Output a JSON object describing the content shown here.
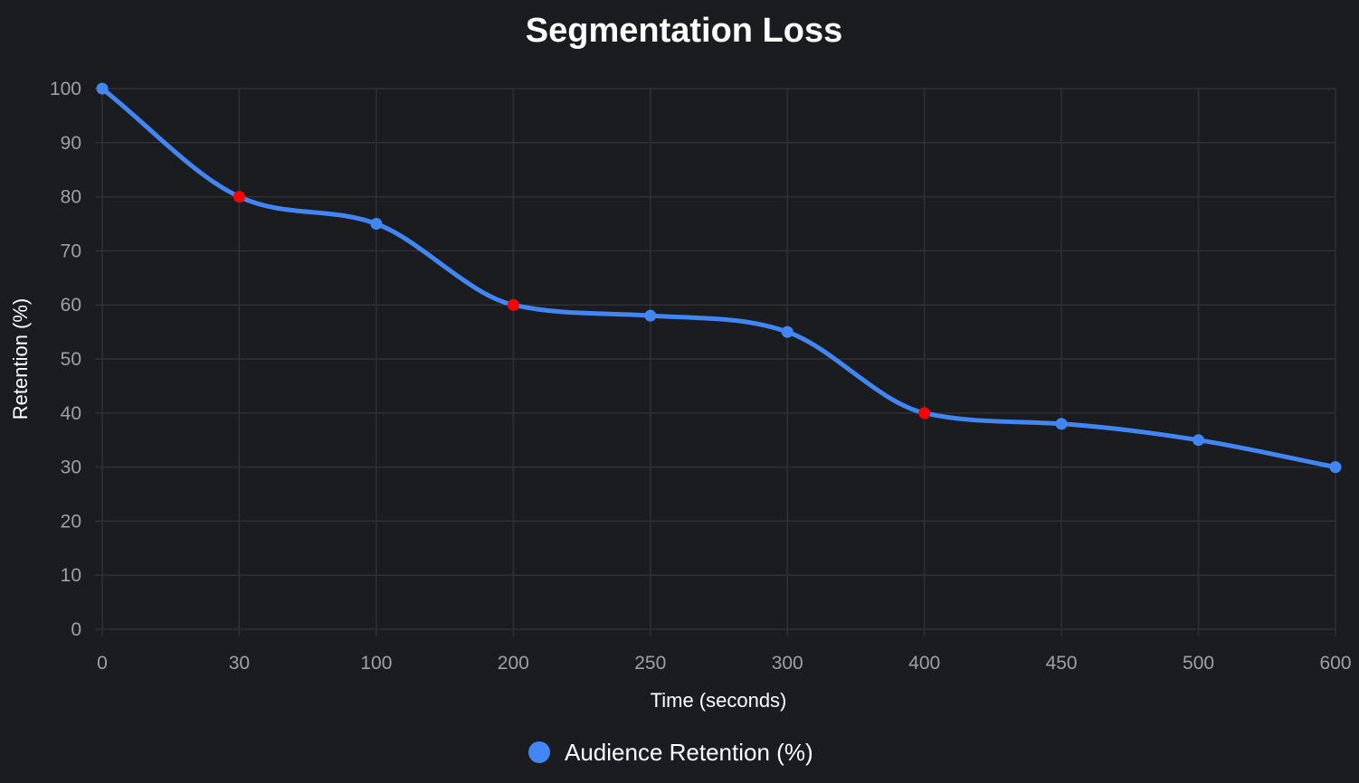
{
  "chart_data": {
    "type": "line",
    "title": "Segmentation Loss",
    "xlabel": "Time (seconds)",
    "ylabel": "Retention (%)",
    "x_ticks": [
      "0",
      "30",
      "100",
      "200",
      "250",
      "300",
      "400",
      "450",
      "500",
      "600"
    ],
    "y_ticks": [
      "0",
      "10",
      "20",
      "30",
      "40",
      "50",
      "60",
      "70",
      "80",
      "90",
      "100"
    ],
    "ylim": [
      0,
      100
    ],
    "grid": true,
    "legend_position": "bottom",
    "series": [
      {
        "name": "Audience Retention (%)",
        "color": "#4286f4",
        "highlight_color": "#ff0000",
        "x": [
          0,
          30,
          100,
          200,
          250,
          300,
          400,
          450,
          500,
          600
        ],
        "values": [
          100,
          80,
          75,
          60,
          58,
          55,
          40,
          38,
          35,
          30
        ],
        "highlighted": [
          false,
          true,
          false,
          true,
          false,
          false,
          true,
          false,
          false,
          false
        ]
      }
    ]
  }
}
